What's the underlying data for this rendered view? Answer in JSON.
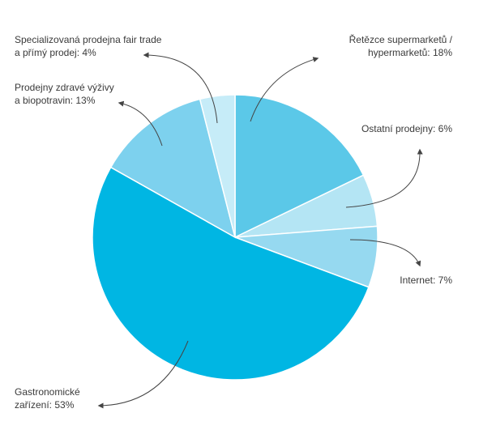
{
  "chart_data": {
    "type": "pie",
    "slices": [
      {
        "name": "Řetězce supermarketů / hypermarketů",
        "value": 18,
        "label_lines": [
          "Řetězce supermarketů /",
          "hypermarketů: 18%"
        ],
        "color": "#5bc8e8"
      },
      {
        "name": "Ostatní prodejny",
        "value": 6,
        "label_lines": [
          "Ostatní prodejny: 6%"
        ],
        "color": "#b4e5f4"
      },
      {
        "name": "Internet",
        "value": 7,
        "label_lines": [
          "Internet: 7%"
        ],
        "color": "#96d9f0"
      },
      {
        "name": "Gastronomické zařízení",
        "value": 53,
        "label_lines": [
          "Gastronomické",
          "zařízení: 53%"
        ],
        "color": "#00b6e3"
      },
      {
        "name": "Prodejny zdravé výživy a biopotravin",
        "value": 13,
        "label_lines": [
          "Prodejny zdravé výživy",
          "a biopotravin: 13%"
        ],
        "color": "#7dd1ee"
      },
      {
        "name": "Specializovaná prodejna fair trade a přímý prodej",
        "value": 4,
        "label_lines": [
          "Specializovaná prodejna fair trade",
          "a přímý prodej: 4%"
        ],
        "color": "#c6ecf8"
      }
    ],
    "start_angle": "top",
    "direction": "clockwise",
    "legend": "none"
  }
}
